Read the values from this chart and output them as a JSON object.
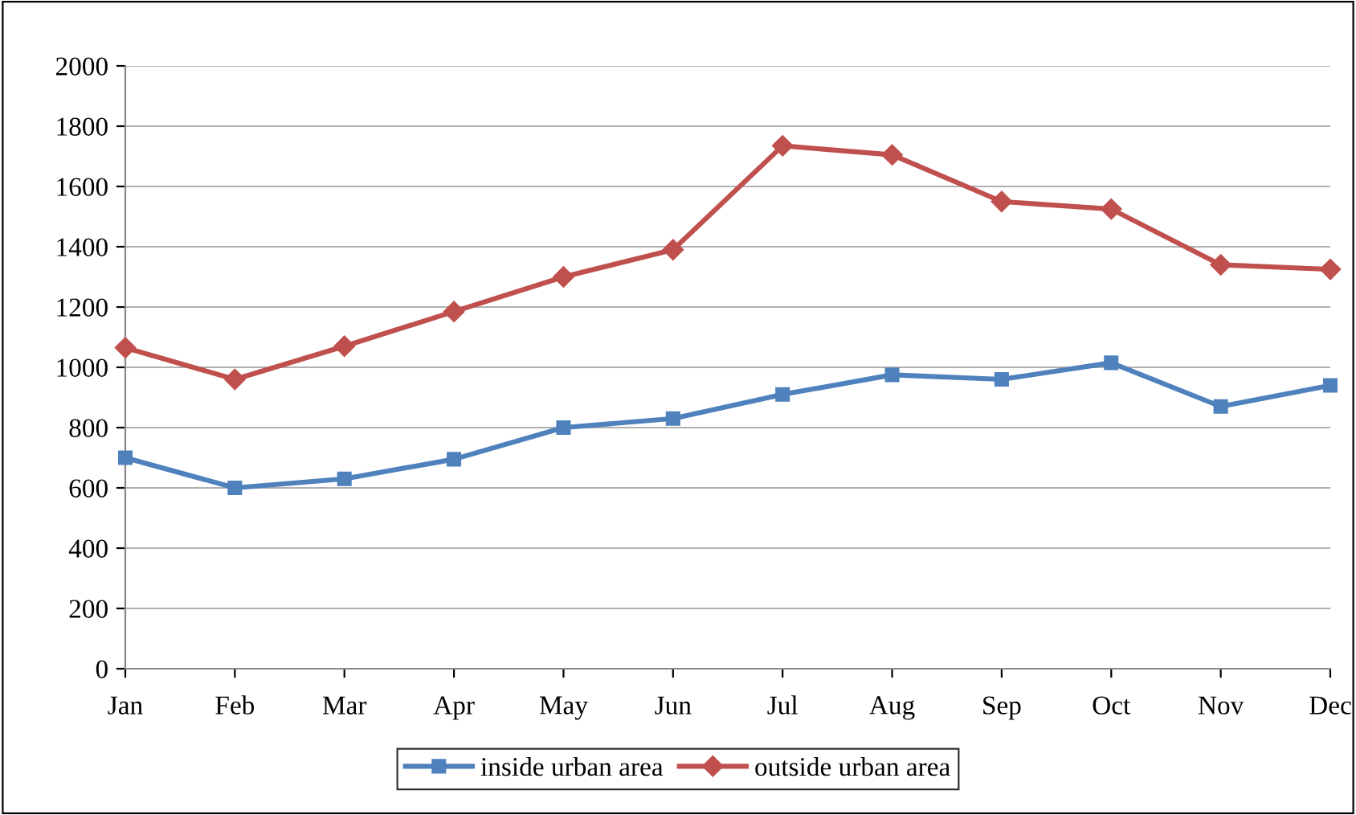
{
  "chart_data": {
    "type": "line",
    "categories": [
      "Jan",
      "Feb",
      "Mar",
      "Apr",
      "May",
      "Jun",
      "Jul",
      "Aug",
      "Sep",
      "Oct",
      "Nov",
      "Dec"
    ],
    "series": [
      {
        "name": "inside urban area",
        "color": "#4f81bd",
        "marker": "square",
        "values": [
          700,
          600,
          630,
          695,
          800,
          830,
          910,
          975,
          960,
          1015,
          870,
          940
        ]
      },
      {
        "name": "outside urban area",
        "color": "#c0504d",
        "marker": "diamond",
        "values": [
          1065,
          960,
          1070,
          1185,
          1300,
          1390,
          1735,
          1705,
          1550,
          1525,
          1340,
          1325
        ]
      }
    ],
    "ylim": [
      0,
      2000
    ],
    "yticks": [
      0,
      200,
      400,
      600,
      800,
      1000,
      1200,
      1400,
      1600,
      1800,
      2000
    ],
    "grid": "y",
    "legend": "bottom",
    "line_style": "solid"
  }
}
